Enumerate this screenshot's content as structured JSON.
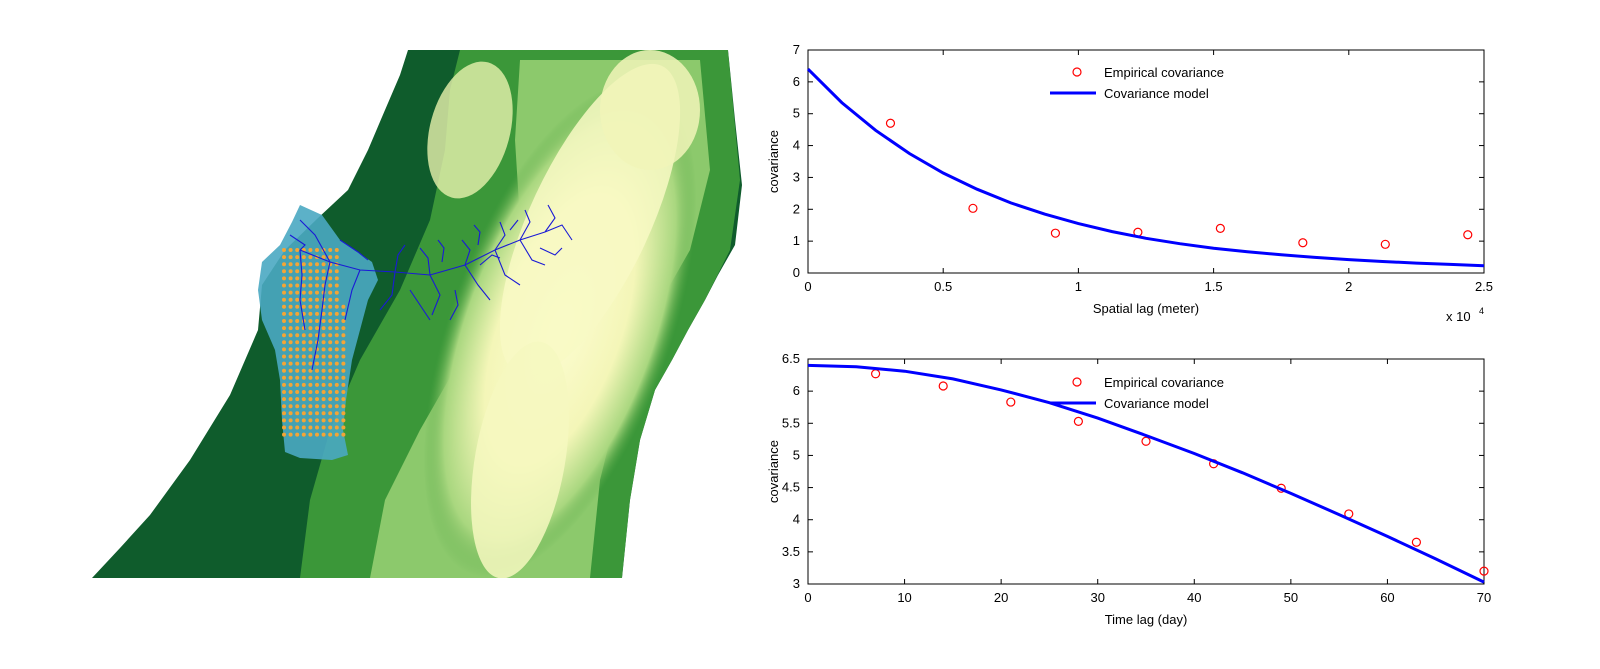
{
  "colors": {
    "lowland": "#0f5c2c",
    "midland": "#3e9a3a",
    "highland": "#fbfbc8",
    "basin": "#4aa8c2",
    "rivers": "#1a1ad6",
    "stations": "#f3a536",
    "empirical": "#ff0000",
    "model": "#0000ff"
  },
  "map": {
    "icon": "terrain-map-with-river-network-and-grid-stations"
  },
  "chart_data": [
    {
      "type": "scatter+line",
      "xlabel": "Spatial lag (meter)",
      "ylabel": "covariance",
      "x_multiplier_label": "x 10",
      "x_multiplier_exp": "4",
      "xlim": [
        0,
        2.5
      ],
      "ylim": [
        0,
        7
      ],
      "xticks": [
        "0",
        "0.5",
        "1",
        "1.5",
        "2",
        "2.5"
      ],
      "yticks": [
        "0",
        "1",
        "2",
        "3",
        "4",
        "5",
        "6",
        "7"
      ],
      "legend": [
        "Empirical covariance",
        "Covariance model"
      ],
      "legend_position": "top-center",
      "series": [
        {
          "name": "Empirical covariance",
          "kind": "markers",
          "x": [
            0.305,
            0.61,
            0.915,
            1.22,
            1.525,
            1.83,
            2.135,
            2.44
          ],
          "y": [
            4.7,
            2.03,
            1.25,
            1.28,
            1.4,
            0.95,
            0.9,
            1.2
          ]
        },
        {
          "name": "Covariance model",
          "kind": "line",
          "x": [
            0,
            0.125,
            0.25,
            0.375,
            0.5,
            0.625,
            0.75,
            0.875,
            1.0,
            1.125,
            1.25,
            1.375,
            1.5,
            1.625,
            1.75,
            1.875,
            2.0,
            2.125,
            2.25,
            2.375,
            2.5
          ],
          "y": [
            6.4,
            5.35,
            4.48,
            3.75,
            3.14,
            2.63,
            2.2,
            1.85,
            1.55,
            1.3,
            1.09,
            0.92,
            0.78,
            0.67,
            0.57,
            0.49,
            0.42,
            0.36,
            0.31,
            0.27,
            0.23
          ]
        }
      ]
    },
    {
      "type": "scatter+line",
      "xlabel": "Time lag (day)",
      "ylabel": "covariance",
      "xlim": [
        0,
        70
      ],
      "ylim": [
        3,
        6.5
      ],
      "xticks": [
        "0",
        "10",
        "20",
        "30",
        "40",
        "50",
        "60",
        "70"
      ],
      "yticks": [
        "3",
        "3.5",
        "4",
        "4.5",
        "5",
        "5.5",
        "6",
        "6.5"
      ],
      "legend": [
        "Empirical covariance",
        "Covariance model"
      ],
      "legend_position": "top-center",
      "series": [
        {
          "name": "Empirical covariance",
          "kind": "markers",
          "x": [
            7,
            14,
            21,
            28,
            35,
            42,
            49,
            56,
            63,
            70
          ],
          "y": [
            6.27,
            6.08,
            5.83,
            5.53,
            5.22,
            4.87,
            4.49,
            4.09,
            3.65,
            3.2
          ]
        },
        {
          "name": "Covariance model",
          "kind": "line",
          "x": [
            0,
            5,
            10,
            15,
            20,
            25,
            30,
            35,
            40,
            45,
            50,
            55,
            60,
            65,
            70
          ],
          "y": [
            6.4,
            6.38,
            6.31,
            6.19,
            6.02,
            5.82,
            5.58,
            5.31,
            5.03,
            4.73,
            4.41,
            4.08,
            3.74,
            3.39,
            3.03
          ]
        }
      ]
    }
  ]
}
